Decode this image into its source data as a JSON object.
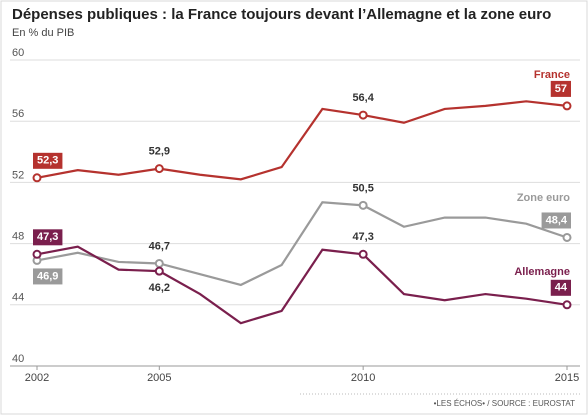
{
  "chart_data": {
    "type": "line",
    "title": "Dépenses publiques : la France toujours devant l’Allemagne et la zone euro",
    "subtitle": "En % du PIB",
    "source": "•LES ÉCHOS• / SOURCE : EUROSTAT",
    "x": [
      2002,
      2003,
      2004,
      2005,
      2006,
      2007,
      2008,
      2009,
      2010,
      2011,
      2012,
      2013,
      2014,
      2015
    ],
    "xlim": [
      2002,
      2015
    ],
    "xticks": [
      2002,
      2005,
      2010,
      2015
    ],
    "ylim": [
      40,
      60
    ],
    "yticks": [
      40,
      44,
      48,
      52,
      56,
      60
    ],
    "grid": true,
    "series": [
      {
        "name": "France",
        "color": "#b5322e",
        "values": [
          52.3,
          52.8,
          52.5,
          52.9,
          52.5,
          52.2,
          53.0,
          56.8,
          56.4,
          55.9,
          56.8,
          57.0,
          57.3,
          57
        ],
        "value_labels": [
          "52,3",
          null,
          null,
          "52,9",
          null,
          null,
          null,
          null,
          "56,4",
          null,
          null,
          null,
          null,
          "57"
        ]
      },
      {
        "name": "Zone euro",
        "color": "#9a9a9a",
        "values": [
          46.9,
          47.4,
          46.8,
          46.7,
          46.0,
          45.3,
          46.6,
          50.7,
          50.5,
          49.1,
          49.7,
          49.7,
          49.3,
          48.4
        ],
        "value_labels": [
          "46,9",
          null,
          null,
          "46,7",
          null,
          null,
          null,
          null,
          "50,5",
          null,
          null,
          null,
          null,
          "48,4"
        ]
      },
      {
        "name": "Allemagne",
        "color": "#7a1f4d",
        "values": [
          47.3,
          47.8,
          46.3,
          46.2,
          44.7,
          42.8,
          43.6,
          47.6,
          47.3,
          44.7,
          44.3,
          44.7,
          44.4,
          44
        ],
        "value_labels": [
          "47,3",
          null,
          null,
          "46,2",
          null,
          null,
          null,
          null,
          "47,3",
          null,
          null,
          null,
          null,
          "44"
        ]
      }
    ]
  }
}
